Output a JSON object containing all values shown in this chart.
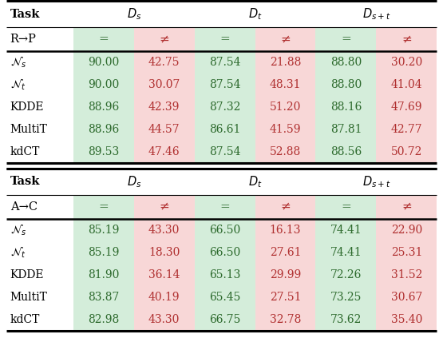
{
  "table1": {
    "task_name": "R→P",
    "sub_headers": [
      "=",
      "≠",
      "=",
      "≠",
      "=",
      "≠"
    ],
    "row_labels": [
      "$\\mathcal{N}_s$",
      "$\\mathcal{N}_t$",
      "KDDE",
      "MultiT",
      "kdCT"
    ],
    "data": [
      [
        90.0,
        42.75,
        87.54,
        21.88,
        88.8,
        30.2
      ],
      [
        90.0,
        30.07,
        87.54,
        48.31,
        88.8,
        41.04
      ],
      [
        88.96,
        42.39,
        87.32,
        51.2,
        88.16,
        47.69
      ],
      [
        88.96,
        44.57,
        86.61,
        41.59,
        87.81,
        42.77
      ],
      [
        89.53,
        47.46,
        87.54,
        52.88,
        88.56,
        50.72
      ]
    ]
  },
  "table2": {
    "task_name": "A→C",
    "sub_headers": [
      "=",
      "≠",
      "=",
      "≠",
      "=",
      "≠"
    ],
    "row_labels": [
      "$\\mathcal{N}_s$",
      "$\\mathcal{N}_t$",
      "KDDE",
      "MultiT",
      "kdCT"
    ],
    "data": [
      [
        85.19,
        43.3,
        66.5,
        16.13,
        74.41,
        22.9
      ],
      [
        85.19,
        18.3,
        66.5,
        27.61,
        74.41,
        25.31
      ],
      [
        81.9,
        36.14,
        65.13,
        29.99,
        72.26,
        31.52
      ],
      [
        83.87,
        40.19,
        65.45,
        27.51,
        73.25,
        30.67
      ],
      [
        82.98,
        43.3,
        66.75,
        32.78,
        73.62,
        35.4
      ]
    ]
  },
  "col_colors": [
    "#d4edda",
    "#f8d7d7",
    "#d4edda",
    "#f8d7d7",
    "#d4edda",
    "#f8d7d7"
  ],
  "text_color_green": "#2d6a2d",
  "text_color_red": "#b03030",
  "group_headers": [
    "$D_s$",
    "$D_t$",
    "$D_{s+t}$"
  ],
  "figsize": [
    5.5,
    4.48
  ],
  "dpi": 100
}
